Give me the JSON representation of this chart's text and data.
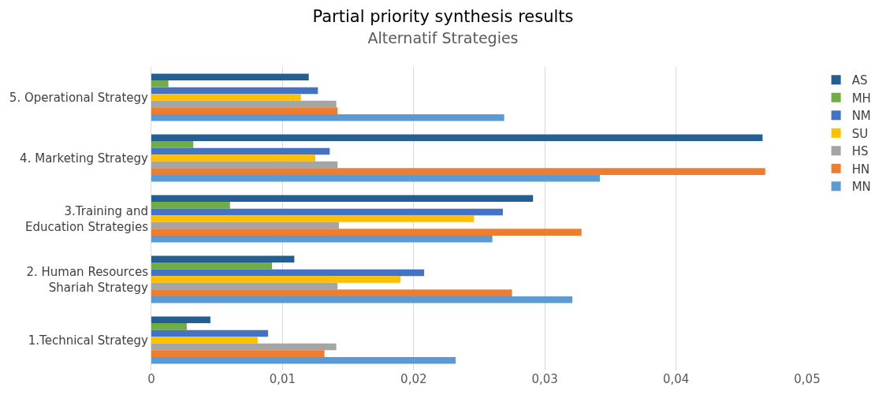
{
  "chart_data": {
    "type": "bar",
    "orientation": "horizontal",
    "title": "Partial priority synthesis results",
    "subtitle": "Alternatif Strategies",
    "categories": [
      "5. Operational Strategy",
      "4. Marketing Strategy",
      "3.Training and\nEducation Strategies",
      "2. Human Resources\nShariah Strategy",
      "1.Technical Strategy"
    ],
    "series": [
      {
        "name": "AS",
        "color": "#255e91",
        "values": [
          0.012,
          0.0466,
          0.0291,
          0.0109,
          0.0045
        ]
      },
      {
        "name": "MH",
        "color": "#70ad47",
        "values": [
          0.0013,
          0.0032,
          0.006,
          0.0092,
          0.0027
        ]
      },
      {
        "name": "NM",
        "color": "#4472c4",
        "values": [
          0.0127,
          0.0136,
          0.0268,
          0.0208,
          0.0089
        ]
      },
      {
        "name": "SU",
        "color": "#ffc000",
        "values": [
          0.0114,
          0.0125,
          0.0246,
          0.019,
          0.0081
        ]
      },
      {
        "name": "HS",
        "color": "#a5a5a5",
        "values": [
          0.0141,
          0.0142,
          0.0143,
          0.0142,
          0.0141
        ]
      },
      {
        "name": "HN",
        "color": "#ed7d31",
        "values": [
          0.0142,
          0.0468,
          0.0328,
          0.0275,
          0.0132
        ]
      },
      {
        "name": "MN",
        "color": "#5b9bd5",
        "values": [
          0.0269,
          0.0342,
          0.026,
          0.0321,
          0.0232
        ]
      }
    ],
    "xlim": [
      0,
      0.05
    ],
    "xticks": [
      0,
      {
        "value": 0.01,
        "label": "0,01"
      },
      {
        "value": 0.02,
        "label": "0,02"
      },
      {
        "value": 0.03,
        "label": "0,03"
      },
      {
        "value": 0.04,
        "label": "0,04"
      },
      {
        "value": 0.05,
        "label": "0,05"
      }
    ],
    "grid": "x",
    "legend": "right"
  }
}
